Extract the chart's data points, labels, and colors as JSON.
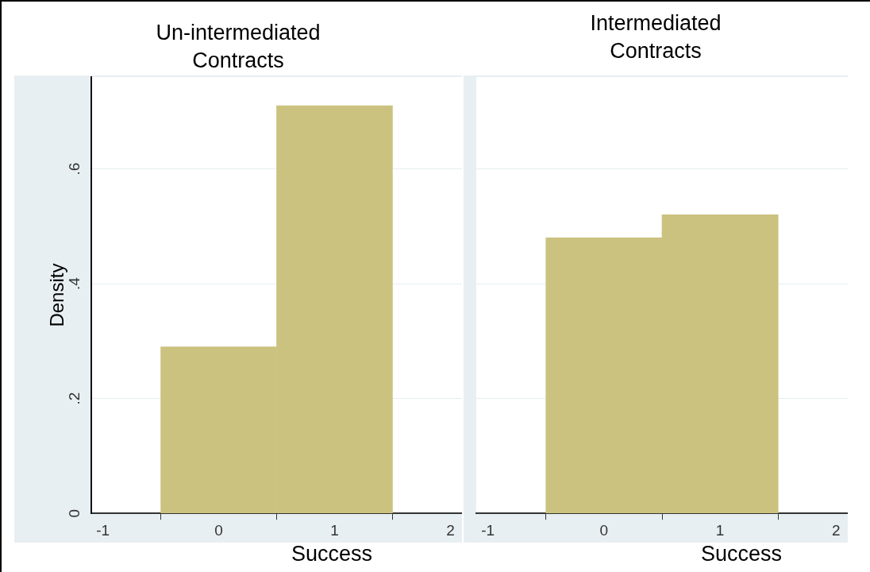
{
  "chart_data": [
    {
      "type": "histogram",
      "title": "Un-intermediated Contracts",
      "xlabel": "Success",
      "ylabel": "Density",
      "bins": [
        -0.5,
        0.5,
        1.5
      ],
      "values": [
        0.29,
        0.71
      ],
      "color": "#cbc27f",
      "xlim": [
        -1.1,
        2.1
      ],
      "xticks": [
        -1,
        0,
        1,
        2
      ],
      "ylim": [
        0,
        0.76
      ],
      "yticks": [
        0,
        {
          "value": 0.2,
          "label": ".2"
        },
        {
          "value": 0.4,
          "label": ".4"
        },
        {
          "value": 0.6,
          "label": ".6"
        }
      ],
      "grid": "y",
      "legend": false
    },
    {
      "type": "histogram",
      "title": "Intermediated Contracts",
      "xlabel": "Success",
      "bins": [
        -0.5,
        0.5,
        1.5
      ],
      "values": [
        0.48,
        0.52
      ],
      "color": "#cbc27f",
      "xlim": [
        -1.1,
        2.1
      ],
      "xticks": [
        -1,
        0,
        1,
        2
      ],
      "ylim": [
        0,
        0.76
      ],
      "yticks": [
        {
          "value": 0,
          "label": null
        },
        {
          "value": 0.2,
          "label": null
        },
        {
          "value": 0.4,
          "label": null
        },
        {
          "value": 0.6,
          "label": null
        }
      ],
      "grid": "y",
      "legend": false,
      "tick_labels": "x"
    }
  ]
}
